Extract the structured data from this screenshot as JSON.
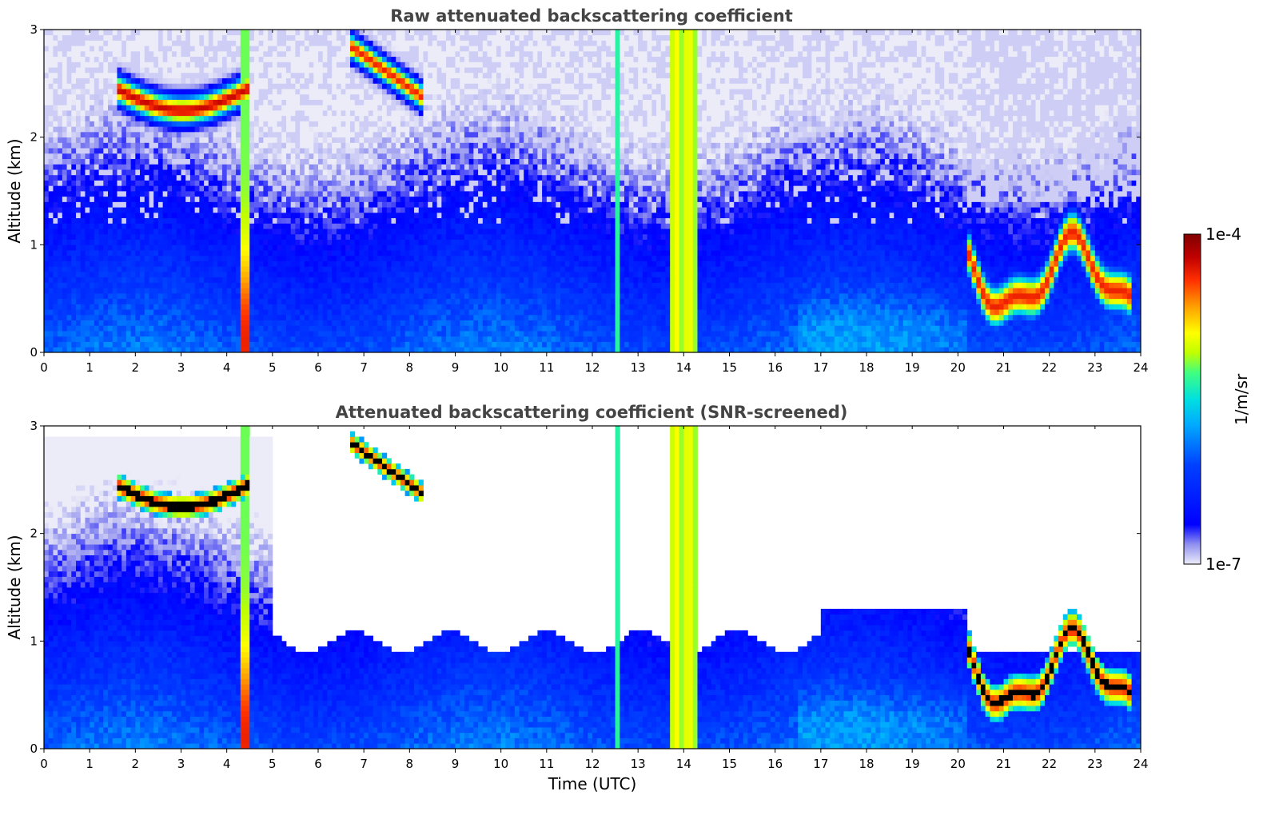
{
  "chart_data": [
    {
      "type": "heatmap",
      "title": "Raw attenuated backscattering coefficient",
      "xlabel": "",
      "ylabel": "Altitude (km)",
      "xlim": [
        0,
        24
      ],
      "ylim": [
        0,
        3
      ],
      "xticks": [
        "0",
        "1",
        "2",
        "3",
        "4",
        "5",
        "6",
        "7",
        "8",
        "9",
        "10",
        "11",
        "12",
        "13",
        "14",
        "15",
        "16",
        "17",
        "18",
        "19",
        "20",
        "21",
        "22",
        "23",
        "24"
      ],
      "yticks": [
        "0",
        "1",
        "2",
        "3"
      ],
      "features": [
        {
          "name": "cirrus layer",
          "x": [
            1.6,
            4.5
          ],
          "y": [
            2.2,
            2.7
          ]
        },
        {
          "name": "elevated cloud",
          "x": [
            6.7,
            8.3
          ],
          "y": [
            2.3,
            2.9
          ]
        },
        {
          "name": "precipitation column",
          "x": [
            13.7,
            14.3
          ],
          "y": [
            0,
            3
          ]
        },
        {
          "name": "rain streak",
          "x": [
            4.25,
            4.55
          ],
          "y": [
            0,
            3
          ]
        },
        {
          "name": "low cloud layer",
          "x": [
            20.2,
            23.8
          ],
          "y": [
            0.3,
            1.3
          ]
        }
      ]
    },
    {
      "type": "heatmap",
      "title": "Attenuated backscattering coefficient (SNR-screened)",
      "xlabel": "Time (UTC)",
      "ylabel": "Altitude (km)",
      "xlim": [
        0,
        24
      ],
      "ylim": [
        0,
        3
      ],
      "xticks": [
        "0",
        "1",
        "2",
        "3",
        "4",
        "5",
        "6",
        "7",
        "8",
        "9",
        "10",
        "11",
        "12",
        "13",
        "14",
        "15",
        "16",
        "17",
        "18",
        "19",
        "20",
        "21",
        "22",
        "23",
        "24"
      ],
      "yticks": [
        "0",
        "1",
        "2",
        "3"
      ],
      "features": [
        {
          "name": "cirrus layer",
          "x": [
            1.6,
            4.5
          ],
          "y": [
            2.2,
            2.7
          ]
        },
        {
          "name": "elevated cloud",
          "x": [
            6.7,
            8.3
          ],
          "y": [
            2.3,
            2.9
          ]
        },
        {
          "name": "precipitation column",
          "x": [
            13.7,
            14.3
          ],
          "y": [
            0,
            3
          ]
        },
        {
          "name": "boundary layer",
          "x": [
            5,
            17
          ],
          "y": [
            0,
            1.0
          ]
        },
        {
          "name": "low cloud layer",
          "x": [
            20.2,
            23.8
          ],
          "y": [
            0.3,
            1.3
          ]
        }
      ]
    }
  ],
  "colorbar": {
    "label": "1/m/sr",
    "max_label": "1e-4",
    "min_label": "1e-7",
    "scale": "log",
    "range": [
      1e-07,
      0.0001
    ],
    "colormap": [
      "#e8e8f8",
      "#8080f0",
      "#0000ff",
      "#0040ff",
      "#00a0ff",
      "#00e0e0",
      "#40ff80",
      "#c0ff00",
      "#ffff00",
      "#ffa000",
      "#ff3000",
      "#c00000",
      "#800000"
    ]
  }
}
